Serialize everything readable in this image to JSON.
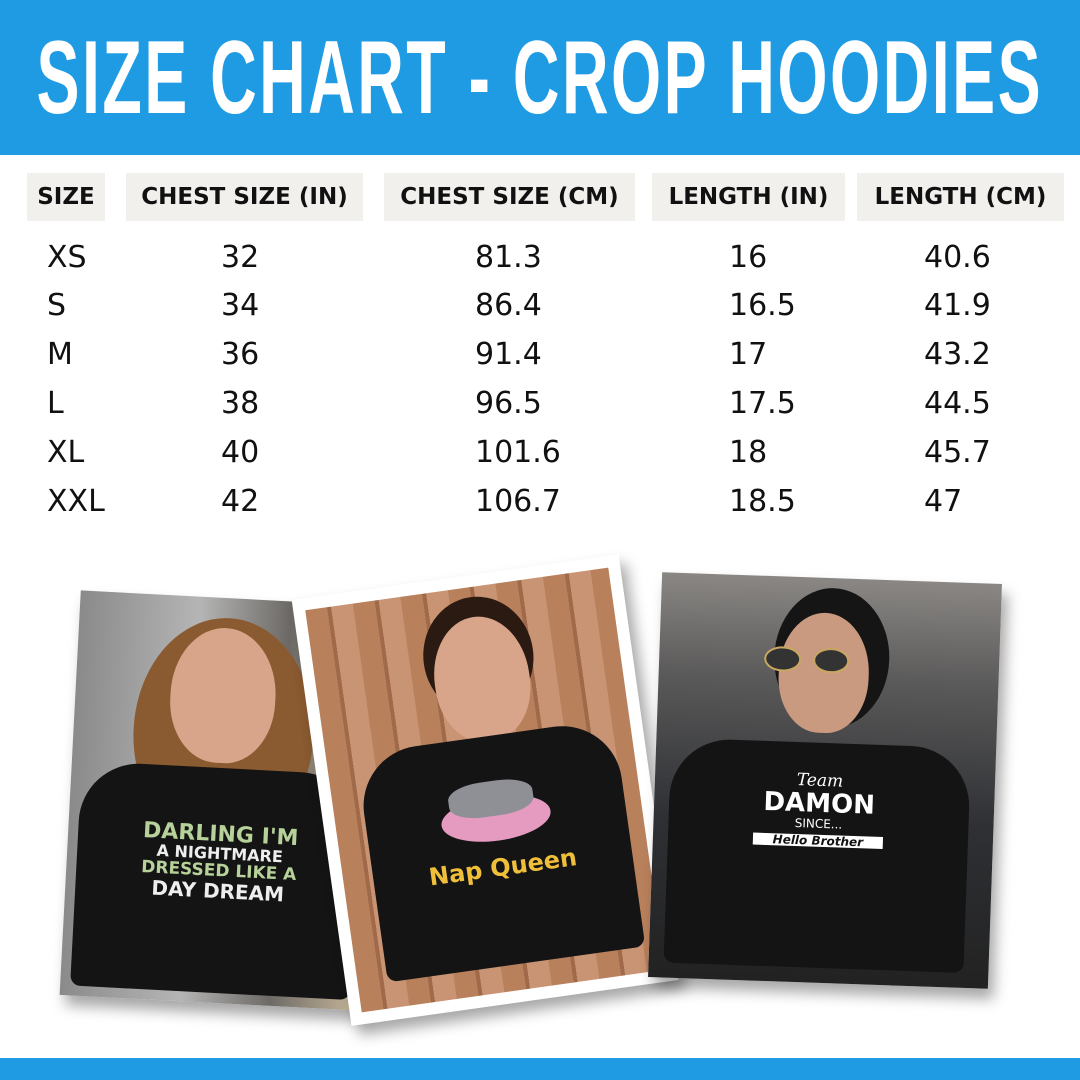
{
  "title": "SIZE CHART - CROP HOODIES",
  "colors": {
    "accent": "#1e9be3",
    "header_cell_bg": "#f1f0ec",
    "text": "#111111"
  },
  "table": {
    "headers": [
      "SIZE",
      "CHEST SIZE (IN)",
      "CHEST SIZE (CM)",
      "LENGTH (IN)",
      "LENGTH (CM)"
    ],
    "rows": [
      [
        "XS",
        "32",
        "81.3",
        "16",
        "40.6"
      ],
      [
        "S",
        "34",
        "86.4",
        "16.5",
        "41.9"
      ],
      [
        "M",
        "36",
        "91.4",
        "17",
        "43.2"
      ],
      [
        "L",
        "38",
        "96.5",
        "17.5",
        "44.5"
      ],
      [
        "XL",
        "40",
        "101.6",
        "18",
        "45.7"
      ],
      [
        "XXL",
        "42",
        "106.7",
        "18.5",
        "47"
      ]
    ]
  },
  "photos": [
    {
      "print_lines": [
        "DARLING I'M",
        "A NIGHTMARE",
        "DRESSED LIKE A",
        "DAY DREAM"
      ]
    },
    {
      "print_lines": [
        "Nap Queen"
      ]
    },
    {
      "print_lines": [
        "Team",
        "DAMON",
        "SINCE...",
        "Hello Brother"
      ]
    }
  ]
}
